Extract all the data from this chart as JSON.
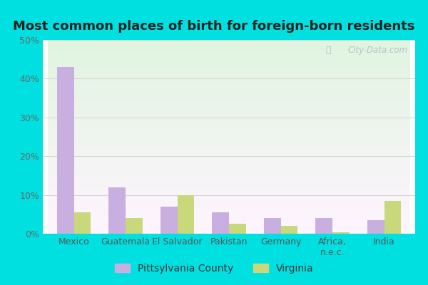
{
  "title": "Most common places of birth for foreign-born residents",
  "categories": [
    "Mexico",
    "Guatemala",
    "El Salvador",
    "Pakistan",
    "Germany",
    "Africa,\nn.e.c.",
    "India"
  ],
  "pittsylvania": [
    43,
    12,
    7,
    5.5,
    4,
    4,
    3.5
  ],
  "virginia": [
    5.5,
    4,
    10,
    2.5,
    2,
    0.3,
    8.5
  ],
  "bar_color_pittsylvania": "#c9aee0",
  "bar_color_virginia": "#c8d87a",
  "background_outer": "#00e0e0",
  "background_inner": "#e0f2e0",
  "ylim": [
    0,
    50
  ],
  "yticks": [
    0,
    10,
    20,
    30,
    40,
    50
  ],
  "ytick_labels": [
    "0%",
    "10%",
    "20%",
    "30%",
    "40%",
    "50%"
  ],
  "legend_label_1": "Pittsylvania County",
  "legend_label_2": "Virginia",
  "title_fontsize": 13,
  "tick_fontsize": 9,
  "legend_fontsize": 10,
  "watermark": "City-Data.com"
}
